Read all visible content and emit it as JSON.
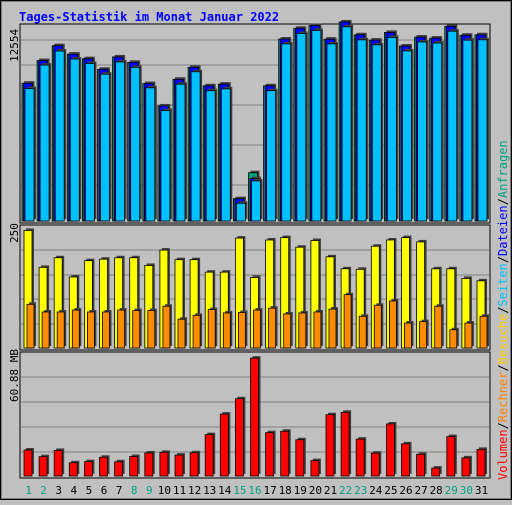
{
  "title": "Tages-Statistik im Monat Januar 2022",
  "chart_data": [
    {
      "type": "bar",
      "panel": "requests-and-files",
      "categories": [
        "1",
        "2",
        "3",
        "4",
        "5",
        "6",
        "7",
        "8",
        "9",
        "10",
        "11",
        "12",
        "13",
        "14",
        "15",
        "16",
        "17",
        "18",
        "19",
        "20",
        "21",
        "22",
        "23",
        "24",
        "25",
        "26",
        "27",
        "28",
        "29",
        "30",
        "31"
      ],
      "ymax_label": "12554",
      "ylim": [
        0,
        12554
      ],
      "grid": true,
      "series": [
        {
          "name": "Anfragen",
          "color": "#00a080",
          "values": [
            9100,
            10600,
            11580,
            11020,
            10720,
            10020,
            10840,
            10480,
            9080,
            7600,
            9360,
            10150,
            8930,
            9040,
            1470,
            3190,
            8930,
            12020,
            12730,
            12910,
            12010,
            13150,
            12300,
            11950,
            12460,
            11560,
            12150,
            12080,
            12860,
            12270,
            12300
          ]
        },
        {
          "name": "Dateien",
          "color": "#0000ff",
          "values": [
            9100,
            10600,
            11580,
            11020,
            10720,
            10020,
            10840,
            10480,
            9080,
            7600,
            9360,
            10150,
            8930,
            9040,
            1470,
            2800,
            8930,
            12020,
            12730,
            12910,
            12010,
            13150,
            12300,
            11950,
            12460,
            11560,
            12150,
            12080,
            12860,
            12270,
            12300
          ]
        },
        {
          "name": "Seiten",
          "color": "#00c0ff",
          "values": [
            8750,
            10300,
            11230,
            10700,
            10410,
            9700,
            10510,
            10150,
            8800,
            7300,
            9040,
            9860,
            8610,
            8730,
            1170,
            2650,
            8610,
            11700,
            12390,
            12590,
            11700,
            12830,
            11970,
            11640,
            12130,
            11240,
            11830,
            11760,
            12540,
            11950,
            11970
          ]
        }
      ]
    },
    {
      "type": "bar",
      "panel": "pages-and-visits",
      "categories": [
        "1",
        "2",
        "3",
        "4",
        "5",
        "6",
        "7",
        "8",
        "9",
        "10",
        "11",
        "12",
        "13",
        "14",
        "15",
        "16",
        "17",
        "18",
        "19",
        "20",
        "21",
        "22",
        "23",
        "24",
        "25",
        "26",
        "27",
        "28",
        "29",
        "30",
        "31"
      ],
      "ymax_label": "250",
      "ylim": [
        0,
        250
      ],
      "grid": true,
      "series": [
        {
          "name": "Besuche",
          "color": "#ffff00",
          "values": [
            245,
            168,
            188,
            148,
            182,
            185,
            188,
            188,
            172,
            204,
            184,
            184,
            158,
            158,
            229,
            147,
            225,
            230,
            210,
            224,
            190,
            165,
            164,
            212,
            225,
            230,
            221,
            165,
            165,
            145,
            140
          ]
        },
        {
          "name": "Seiten",
          "color": "#ff8c00",
          "values": [
            91,
            75,
            75,
            79,
            75,
            75,
            79,
            78,
            78,
            87,
            60,
            68,
            80,
            73,
            74,
            79,
            83,
            71,
            73,
            75,
            81,
            111,
            66,
            89,
            98,
            52,
            55,
            87,
            38,
            52,
            66
          ]
        }
      ]
    },
    {
      "type": "bar",
      "panel": "volume",
      "categories": [
        "1",
        "2",
        "3",
        "4",
        "5",
        "6",
        "7",
        "8",
        "9",
        "10",
        "11",
        "12",
        "13",
        "14",
        "15",
        "16",
        "17",
        "18",
        "19",
        "20",
        "21",
        "22",
        "23",
        "24",
        "25",
        "26",
        "27",
        "28",
        "29",
        "30",
        "31"
      ],
      "ymax_label": "60.88 MB",
      "ylim": [
        0,
        60.88
      ],
      "grid": true,
      "series": [
        {
          "name": "Volumen",
          "color": "#ff0000",
          "values": [
            13.2,
            9.8,
            13.0,
            6.7,
            7.3,
            9.5,
            7.2,
            9.9,
            11.7,
            12.0,
            10.6,
            11.8,
            21.0,
            31.4,
            39.2,
            59.8,
            22.0,
            22.7,
            18.4,
            7.8,
            31.1,
            32.3,
            18.7,
            11.6,
            26.4,
            16.3,
            11.0,
            4.0,
            20.0,
            9.2,
            13.5
          ]
        }
      ]
    }
  ],
  "legend": {
    "volumen": "Volumen",
    "rechner": "Rechner",
    "besuche": "Besuche",
    "seiten": "Seiten",
    "dateien": "Dateien",
    "anfragen": "Anfragen",
    "sep": "/"
  },
  "colors": {
    "background": "#c0c0c0",
    "plot_background": "#c0c0c0",
    "title": "#0000ff",
    "weekend_label": "#00a080",
    "weekday_label": "#000000",
    "volumen": "#ff0000",
    "rechner": "#ff8000",
    "besuche": "#ffd000",
    "seiten": "#00c0ff",
    "dateien": "#0000ff",
    "anfragen": "#00a080"
  },
  "weekend_days": [
    "1",
    "2",
    "8",
    "9",
    "15",
    "16",
    "22",
    "23",
    "29",
    "30"
  ]
}
